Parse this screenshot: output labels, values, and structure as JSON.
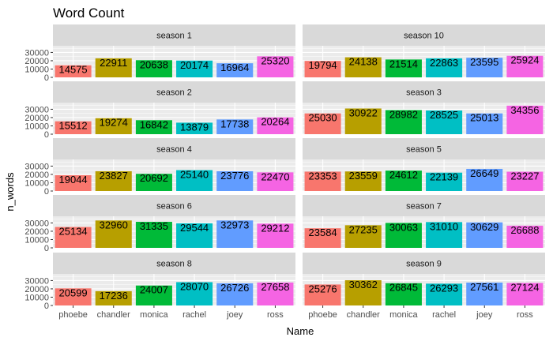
{
  "chart_data": {
    "type": "bar",
    "title": "Word Count",
    "xlabel": "Name",
    "ylabel": "n_words",
    "categories": [
      "phoebe",
      "chandler",
      "monica",
      "rachel",
      "joey",
      "ross"
    ],
    "ylim": [
      0,
      38000
    ],
    "yticks": [
      0,
      10000,
      20000,
      30000
    ],
    "colors": [
      "#F8766D",
      "#B79F00",
      "#00BA38",
      "#00BFC4",
      "#619CFF",
      "#F564E3"
    ],
    "facets": [
      {
        "name": "season 1",
        "values": [
          14575,
          22911,
          20638,
          20174,
          16964,
          25320
        ]
      },
      {
        "name": "season 10",
        "values": [
          19794,
          24138,
          21514,
          22863,
          23595,
          25924
        ]
      },
      {
        "name": "season 2",
        "values": [
          15512,
          19274,
          16842,
          13879,
          17738,
          20264
        ]
      },
      {
        "name": "season 3",
        "values": [
          25030,
          30922,
          28982,
          28525,
          25013,
          34356
        ]
      },
      {
        "name": "season 4",
        "values": [
          19044,
          23827,
          20692,
          25140,
          23776,
          22470
        ]
      },
      {
        "name": "season 5",
        "values": [
          23353,
          23559,
          24612,
          22139,
          26649,
          23227
        ]
      },
      {
        "name": "season 6",
        "values": [
          25134,
          32960,
          31335,
          29544,
          32973,
          29212
        ]
      },
      {
        "name": "season 7",
        "values": [
          23584,
          27235,
          30063,
          31010,
          30629,
          26688
        ]
      },
      {
        "name": "season 8",
        "values": [
          20599,
          17236,
          24007,
          28070,
          26726,
          27658
        ]
      },
      {
        "name": "season 9",
        "values": [
          25276,
          30362,
          26845,
          26293,
          27561,
          27124
        ]
      }
    ]
  }
}
